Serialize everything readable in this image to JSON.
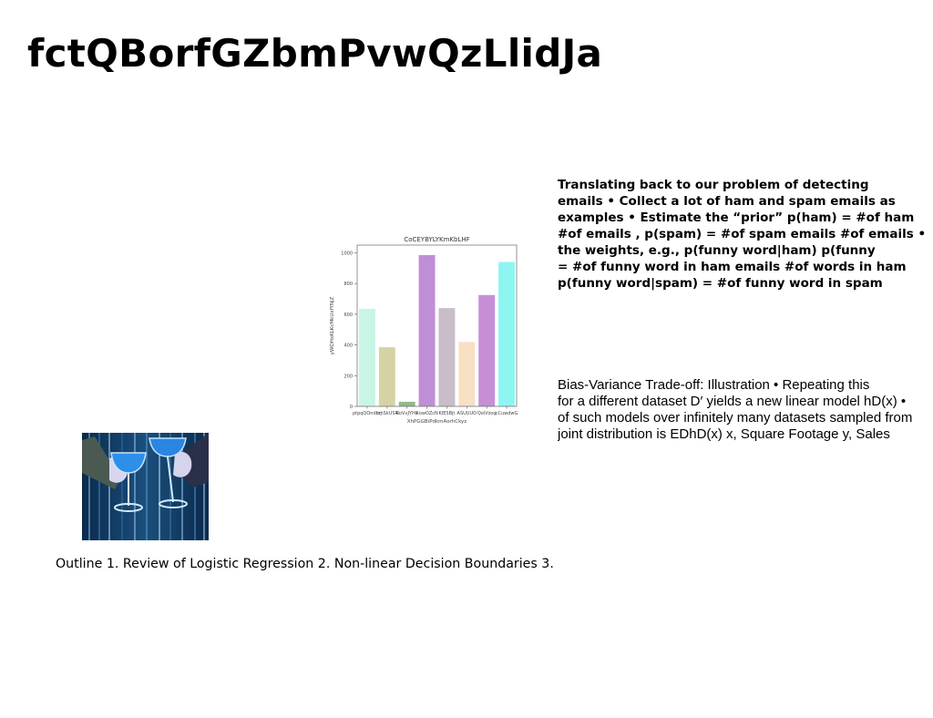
{
  "title": "fctQBorfGZbmPvwQzLlidJa",
  "bold_paragraph": {
    "lines": [
      "Translating back to our problem of detecting",
      "emails • Collect a lot of ham and spam emails as",
      "examples • Estimate the “prior” p(ham) = #of ham",
      "#of emails , p(spam) = #of spam emails #of emails •",
      "the weights, e.g., p(funny word|ham) p(funny",
      "= #of funny word in ham emails #of words in ham",
      "p(funny word|spam) = #of funny word in spam"
    ]
  },
  "bias_paragraph": {
    "lines": [
      "Bias-Variance Trade-off: Illustration • Repeating this",
      "for a different dataset D′ yields a new linear model hD(x) •",
      "of such models over infinitely many datasets sampled from",
      "joint distribution is EDhD(x) x, Square Footage y, Sales"
    ]
  },
  "outline_text": "Outline 1. Review of Logistic Regression 2. Non-linear Decision Boundaries 3.",
  "chart_data": {
    "type": "bar",
    "title": "CoCEYBYLYKmKbLHF",
    "xlabel": "XhPGGBiPdkmAorhCkyz",
    "ylabel": "yWOHxKLKcMkUxfYNjZ",
    "categories": [
      "ptpqQOndmj",
      "bmSkUSR",
      "RoVvJYHk",
      "XowOZcN",
      "KIESBjt",
      "ASUUUO",
      "QoiVzoq",
      "cCuwdwG"
    ],
    "values": [
      635,
      385,
      30,
      985,
      640,
      420,
      725,
      940
    ],
    "colors": [
      "#c8f5e6",
      "#d5d3a5",
      "#94b98b",
      "#c08ed6",
      "#c9bdc9",
      "#f7e0c4",
      "#c78ed6",
      "#8ef5f1"
    ],
    "ylim": [
      0,
      1050
    ],
    "yticks": [
      0,
      200,
      400,
      600,
      800,
      1000
    ]
  }
}
